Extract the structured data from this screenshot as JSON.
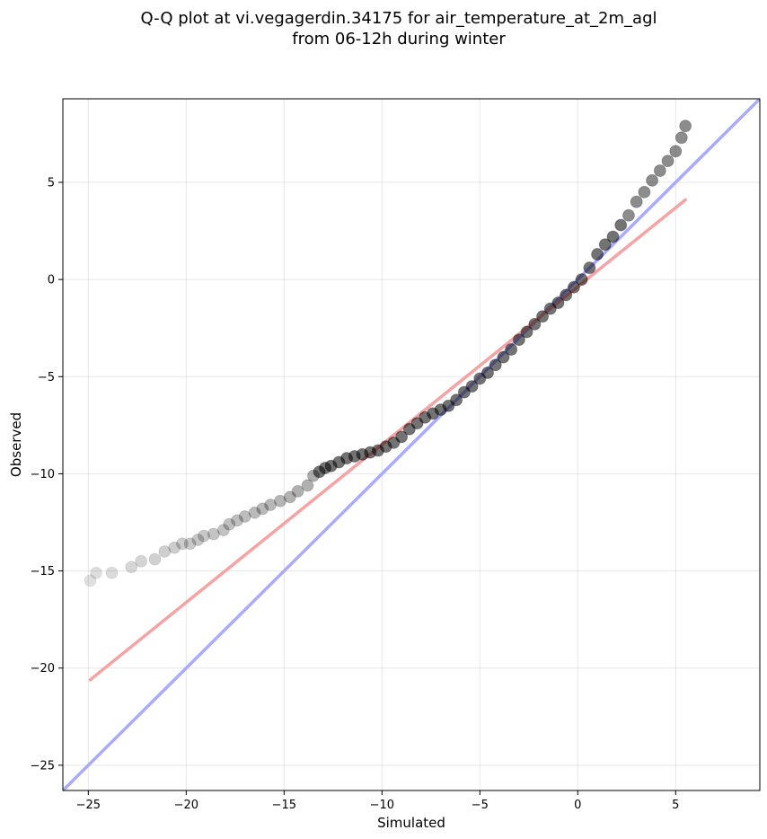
{
  "chart_data": {
    "type": "scatter",
    "title_line1": "Q-Q plot at vi.vegagerdin.34175 for air_temperature_at_2m_agl",
    "title_line2": "from 06-12h during winter",
    "xlabel": "Simulated",
    "ylabel": "Observed",
    "xlim": [
      -26.3,
      9.3
    ],
    "ylim": [
      -26.3,
      9.3
    ],
    "x_ticks": [
      -25,
      -20,
      -15,
      -10,
      -5,
      0,
      5
    ],
    "y_ticks": [
      -25,
      -20,
      -15,
      -10,
      -5,
      0,
      5
    ],
    "x_tick_labels": [
      "−25",
      "−20",
      "−15",
      "−10",
      "−5",
      "0",
      "5"
    ],
    "y_tick_labels": [
      "−25",
      "−20",
      "−15",
      "−10",
      "−5",
      "0",
      "5"
    ],
    "grid": true,
    "reference_lines": [
      {
        "color": "#aaaaff",
        "from": [
          -26.3,
          -26.3
        ],
        "to": [
          9.3,
          9.3
        ]
      },
      {
        "color": "#f5a3a3",
        "from": [
          -24.9,
          -20.6
        ],
        "to": [
          5.5,
          4.1
        ]
      }
    ],
    "series": [
      {
        "color": "#000000",
        "x": [
          -24.9,
          -24.6,
          -23.8,
          -22.8,
          -22.3,
          -21.6,
          -21.1,
          -20.6,
          -20.2,
          -19.8,
          -19.4,
          -19.1,
          -18.6,
          -18.1,
          -17.8,
          -17.4,
          -17.0,
          -16.5,
          -16.1,
          -15.7,
          -15.2,
          -14.7,
          -14.3,
          -13.8,
          -13.5,
          -13.2,
          -12.9,
          -12.6,
          -12.2,
          -11.8,
          -11.4,
          -11.0,
          -10.6,
          -10.2,
          -9.8,
          -9.4,
          -9.0,
          -8.6,
          -8.2,
          -7.8,
          -7.4,
          -7.0,
          -6.6,
          -6.2,
          -5.8,
          -5.4,
          -5.0,
          -4.6,
          -4.2,
          -3.8,
          -3.4,
          -3.0,
          -2.6,
          -2.2,
          -1.8,
          -1.4,
          -1.0,
          -0.6,
          -0.2,
          0.2,
          0.6,
          1.0,
          1.4,
          1.8,
          2.2,
          2.6,
          3.0,
          3.4,
          3.8,
          4.2,
          4.6,
          5.0,
          5.3,
          5.5
        ],
        "y": [
          -15.5,
          -15.1,
          -15.1,
          -14.8,
          -14.5,
          -14.4,
          -14.0,
          -13.8,
          -13.6,
          -13.6,
          -13.4,
          -13.2,
          -13.1,
          -12.9,
          -12.6,
          -12.4,
          -12.2,
          -12.0,
          -11.8,
          -11.6,
          -11.4,
          -11.2,
          -10.9,
          -10.6,
          -10.1,
          -9.9,
          -9.7,
          -9.6,
          -9.4,
          -9.2,
          -9.1,
          -9.0,
          -8.9,
          -8.8,
          -8.6,
          -8.4,
          -8.1,
          -7.7,
          -7.4,
          -7.1,
          -6.9,
          -6.7,
          -6.5,
          -6.2,
          -5.8,
          -5.5,
          -5.1,
          -4.8,
          -4.4,
          -4.0,
          -3.6,
          -3.1,
          -2.7,
          -2.3,
          -1.9,
          -1.5,
          -1.2,
          -0.8,
          -0.4,
          0.0,
          0.6,
          1.3,
          1.8,
          2.2,
          2.8,
          3.3,
          4.0,
          4.5,
          5.1,
          5.6,
          6.1,
          6.6,
          7.3,
          7.9
        ]
      }
    ]
  }
}
